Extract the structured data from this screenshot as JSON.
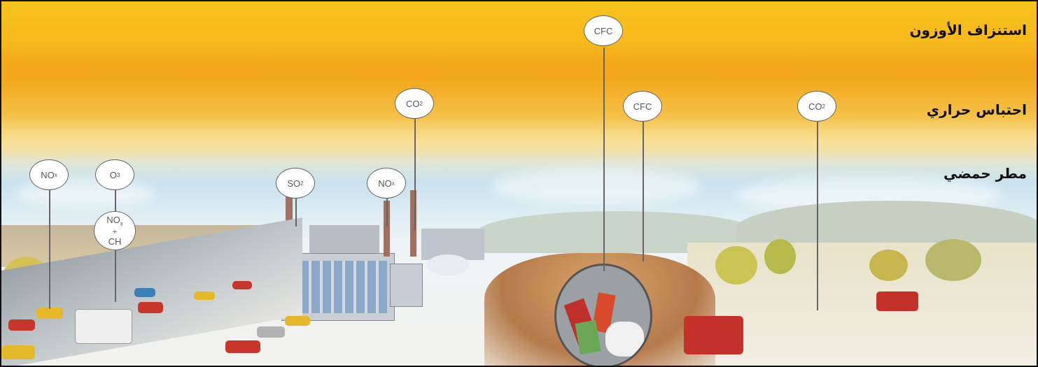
{
  "labels": {
    "ozone_depletion": "استنزاف الأوزون",
    "greenhouse": "احتباس حراري",
    "acid_rain": "مطر حمضي"
  },
  "bubbles": {
    "nox_left": "NO",
    "o3": "O",
    "nox_ch_top": "NO",
    "nox_ch_bottom": "CH",
    "so2": "SO",
    "nox_factory": "NO",
    "co2_factory": "CO",
    "cfc_top": "CFC",
    "cfc_mid": "CFC",
    "co2_right": "CO"
  },
  "subscripts": {
    "x": "x",
    "n3": "3",
    "n2": "2"
  },
  "colors": {
    "sky_orange": "#f3aa1e",
    "sky_blue": "#c9e2ee",
    "label_text": "#111111"
  }
}
